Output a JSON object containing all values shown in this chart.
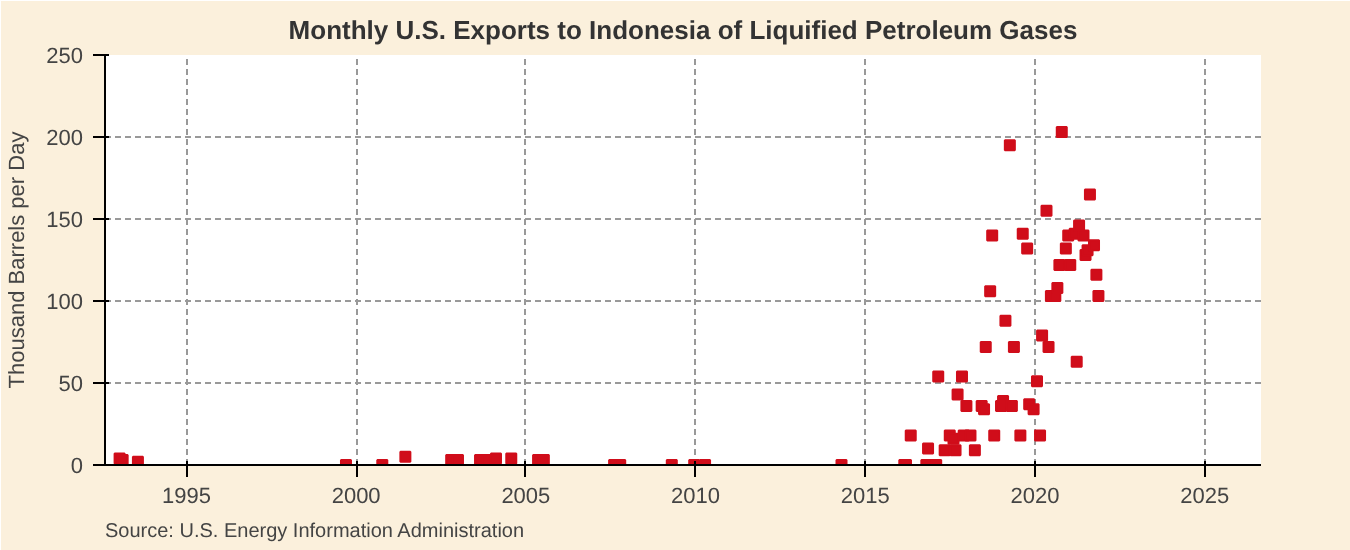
{
  "chart_data": {
    "type": "scatter",
    "title": "Monthly U.S. Exports to Indonesia of Liquified Petroleum Gases",
    "ylabel": "Thousand Barrels per Day",
    "annotations": [
      "Source: U.S. Energy Information Administration"
    ],
    "x": [
      1993.03,
      1993.12,
      1993.57,
      1999.7,
      2000.77,
      2001.45,
      2002.8,
      2003.0,
      2003.65,
      2003.87,
      2004.12,
      2004.57,
      2005.36,
      2005.53,
      2007.6,
      2007.78,
      2009.3,
      2009.96,
      2010.28,
      2014.3,
      2016.15,
      2016.2,
      2016.34,
      2016.8,
      2016.85,
      2017.09,
      2017.15,
      2017.34,
      2017.49,
      2017.6,
      2017.66,
      2017.72,
      2017.85,
      2017.9,
      2017.98,
      2018.1,
      2018.23,
      2018.43,
      2018.5,
      2018.55,
      2018.68,
      2018.74,
      2018.8,
      2019.0,
      2019.06,
      2019.13,
      2019.26,
      2019.32,
      2019.38,
      2019.57,
      2019.64,
      2019.77,
      2019.83,
      2019.96,
      2020.06,
      2020.15,
      2020.21,
      2020.34,
      2020.4,
      2020.47,
      2020.6,
      2020.66,
      2020.72,
      2020.79,
      2020.91,
      2020.98,
      2021.04,
      2021.17,
      2021.23,
      2021.3,
      2021.43,
      2021.49,
      2021.55,
      2021.62,
      2021.74,
      2021.81,
      2021.87
    ],
    "series": [
      {
        "color": "#d00d1a",
        "values": [
          4,
          3,
          2,
          0,
          0,
          5,
          3,
          3,
          3,
          3,
          4,
          4,
          3,
          3,
          0,
          0,
          0,
          0,
          0,
          0,
          0,
          0,
          18,
          0,
          10,
          0,
          54,
          9,
          18,
          16,
          9,
          43,
          54,
          18,
          36,
          18,
          9,
          36,
          34,
          72,
          106,
          140,
          18,
          36,
          39,
          88,
          195,
          36,
          72,
          18,
          141,
          132,
          37,
          34,
          51,
          18,
          79,
          155,
          72,
          103,
          103,
          108,
          122,
          203,
          132,
          140,
          122,
          141,
          63,
          146,
          140,
          128,
          131,
          165,
          134,
          116,
          103
        ]
      }
    ],
    "xlim": [
      1992.6,
      2026.66
    ],
    "xticks": [
      1995,
      2000,
      2005,
      2010,
      2015,
      2020,
      2025
    ],
    "ylim": [
      0,
      250
    ],
    "yticks": [
      0,
      50,
      100,
      150,
      200,
      250
    ],
    "grid": true,
    "marker": "square"
  }
}
